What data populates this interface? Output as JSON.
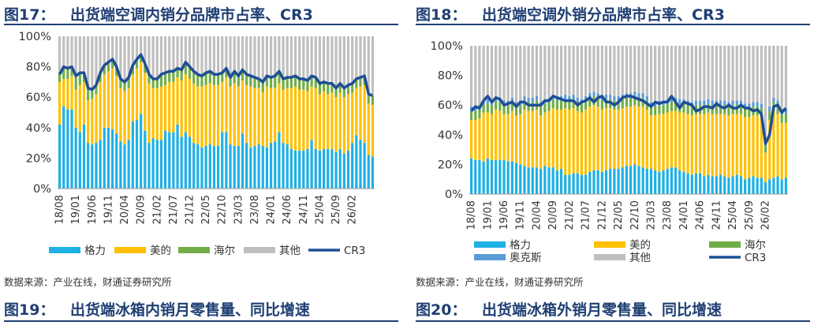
{
  "figure17": {
    "label": "图17：",
    "title": "出货端空调内销分品牌市占率、CR3",
    "source": "数据来源：产业在线，财通证券研究所"
  },
  "figure18": {
    "label": "图18：",
    "title": "出货端空调外销分品牌市占率、CR3",
    "source": "数据来源：产业在线，财通证券研究所"
  },
  "figure19": {
    "label": "图19：",
    "title": "出货端冰箱内销月零售量、同比增速"
  },
  "figure20": {
    "label": "图20：",
    "title": "出货端冰箱外销月零售量、同比增速"
  },
  "colors": {
    "gree": "#1fb0e6",
    "midea": "#ffc000",
    "haier": "#70ad47",
    "aux": "#5b9bd5",
    "other": "#bfbfbf",
    "cr3": "#1f4e96"
  },
  "chart_data": [
    {
      "type": "bar",
      "stacked": true,
      "title": "出货端空调内销分品牌市占率、CR3",
      "ylim": [
        0,
        100
      ],
      "y_ticks": [
        "0%",
        "20%",
        "40%",
        "60%",
        "80%",
        "100%"
      ],
      "x_ticks": [
        "18/08",
        "19/01",
        "19/06",
        "19/11",
        "20/04",
        "20/09",
        "21/02",
        "21/07",
        "21/12",
        "22/05",
        "22/10",
        "23/03",
        "23/08",
        "24/01",
        "24/06",
        "24/11",
        "25/04",
        "25/09",
        "26/02"
      ],
      "legend": {
        "position": "bottom",
        "labels": [
          "格力",
          "美的",
          "海尔",
          "其他",
          "CR3"
        ]
      },
      "series": [
        {
          "name": "格力",
          "values": [
            42,
            54,
            52,
            52,
            40,
            37,
            42,
            30,
            29,
            30,
            32,
            40,
            40,
            39,
            36,
            31,
            29,
            32,
            44,
            45,
            49,
            38,
            30,
            33,
            32,
            32,
            38,
            37,
            37,
            42,
            34,
            37,
            34,
            30,
            29,
            27,
            28,
            29,
            28,
            28,
            37,
            37,
            29,
            28,
            28,
            36,
            30,
            27,
            28,
            29,
            28,
            27,
            30,
            31,
            37,
            30,
            29,
            26,
            25,
            25,
            25,
            26,
            32,
            26,
            25,
            26,
            26,
            26,
            24,
            26,
            23,
            25,
            30,
            35,
            32,
            30,
            22,
            21
          ]
        },
        {
          "name": "美的",
          "values": [
            28,
            18,
            20,
            22,
            25,
            31,
            28,
            28,
            30,
            32,
            38,
            35,
            37,
            40,
            38,
            35,
            35,
            34,
            31,
            34,
            34,
            38,
            39,
            33,
            34,
            35,
            30,
            33,
            33,
            31,
            37,
            38,
            38,
            39,
            38,
            40,
            40,
            40,
            40,
            40,
            33,
            36,
            38,
            41,
            39,
            35,
            38,
            40,
            38,
            37,
            35,
            40,
            36,
            35,
            32,
            35,
            37,
            40,
            42,
            40,
            40,
            38,
            35,
            40,
            37,
            38,
            36,
            37,
            36,
            37,
            37,
            37,
            33,
            31,
            35,
            38,
            34,
            34
          ]
        },
        {
          "name": "海尔",
          "values": [
            6,
            8,
            7,
            6,
            9,
            8,
            6,
            8,
            6,
            6,
            6,
            6,
            6,
            6,
            6,
            6,
            6,
            7,
            6,
            6,
            5,
            6,
            6,
            6,
            6,
            8,
            8,
            7,
            7,
            6,
            7,
            8,
            8,
            8,
            8,
            7,
            8,
            8,
            7,
            7,
            6,
            6,
            6,
            8,
            7,
            7,
            7,
            7,
            7,
            6,
            7,
            7,
            7,
            8,
            8,
            7,
            7,
            7,
            7,
            7,
            7,
            7,
            7,
            7,
            7,
            6,
            6,
            6,
            6,
            6,
            6,
            6,
            6,
            6,
            6,
            6,
            6,
            6
          ]
        },
        {
          "name": "CR3",
          "type": "line",
          "values": [
            75,
            80,
            79,
            80,
            74,
            76,
            76,
            66,
            65,
            68,
            76,
            81,
            83,
            85,
            80,
            72,
            70,
            73,
            81,
            85,
            88,
            82,
            75,
            72,
            72,
            75,
            76,
            77,
            77,
            79,
            78,
            83,
            80,
            77,
            75,
            74,
            76,
            77,
            75,
            75,
            76,
            79,
            73,
            77,
            74,
            78,
            75,
            74,
            73,
            72,
            70,
            74,
            73,
            74,
            77,
            72,
            73,
            73,
            74,
            72,
            72,
            71,
            74,
            73,
            69,
            70,
            69,
            69,
            66,
            69,
            66,
            68,
            69,
            72,
            73,
            74,
            62,
            61
          ]
        }
      ]
    },
    {
      "type": "bar",
      "stacked": true,
      "title": "出货端空调外销分品牌市占率、CR3",
      "ylim": [
        0,
        100
      ],
      "y_ticks": [
        "0%",
        "20%",
        "40%",
        "60%",
        "80%",
        "100%"
      ],
      "x_ticks": [
        "18/08",
        "19/01",
        "19/06",
        "19/11",
        "20/04",
        "20/09",
        "21/02",
        "21/07",
        "21/12",
        "22/05",
        "22/10",
        "23/03",
        "23/08",
        "24/01",
        "24/06",
        "24/11",
        "25/04",
        "25/09",
        "26/02"
      ],
      "legend": {
        "position": "bottom",
        "labels": [
          "格力",
          "美的",
          "海尔",
          "奥克斯",
          "其他",
          "CR3"
        ]
      },
      "series": [
        {
          "name": "格力",
          "values": [
            24,
            23,
            23,
            22,
            24,
            23,
            23,
            23,
            23,
            22,
            22,
            21,
            20,
            19,
            18,
            18,
            18,
            17,
            19,
            18,
            18,
            16,
            17,
            13,
            13,
            14,
            14,
            13,
            13,
            15,
            16,
            16,
            15,
            16,
            17,
            17,
            17,
            18,
            19,
            19,
            20,
            19,
            18,
            17,
            17,
            16,
            15,
            16,
            17,
            18,
            18,
            16,
            15,
            14,
            13,
            14,
            14,
            12,
            13,
            12,
            12,
            13,
            12,
            11,
            12,
            13,
            12,
            10,
            11,
            12,
            11,
            11,
            8,
            10,
            11,
            12,
            10,
            11
          ]
        },
        {
          "name": "美的",
          "values": [
            26,
            27,
            28,
            33,
            31,
            31,
            34,
            33,
            31,
            32,
            34,
            32,
            34,
            38,
            38,
            38,
            39,
            36,
            36,
            38,
            40,
            41,
            40,
            45,
            44,
            44,
            42,
            42,
            44,
            44,
            44,
            43,
            42,
            42,
            41,
            40,
            40,
            40,
            40,
            40,
            40,
            40,
            41,
            40,
            36,
            37,
            39,
            38,
            38,
            38,
            38,
            39,
            40,
            40,
            40,
            40,
            40,
            42,
            42,
            42,
            42,
            41,
            42,
            42,
            42,
            41,
            42,
            42,
            41,
            41,
            42,
            41,
            20,
            40,
            45,
            42,
            38,
            37
          ]
        },
        {
          "name": "海尔",
          "values": [
            6,
            6,
            6,
            6,
            6,
            6,
            6,
            6,
            6,
            6,
            6,
            6,
            6,
            6,
            6,
            6,
            6,
            6,
            6,
            6,
            6,
            6,
            6,
            6,
            6,
            6,
            6,
            6,
            6,
            6,
            6,
            6,
            6,
            6,
            6,
            6,
            6,
            6,
            6,
            6,
            6,
            6,
            6,
            6,
            6,
            6,
            6,
            6,
            6,
            6,
            6,
            6,
            6,
            6,
            6,
            6,
            6,
            6,
            6,
            6,
            6,
            6,
            6,
            6,
            6,
            6,
            6,
            6,
            6,
            6,
            6,
            6,
            5,
            6,
            6,
            6,
            6,
            6
          ]
        },
        {
          "name": "奥克斯",
          "values": [
            3,
            3,
            3,
            3,
            3,
            3,
            3,
            3,
            3,
            3,
            3,
            3,
            3,
            3,
            3,
            3,
            3,
            3,
            3,
            3,
            3,
            3,
            3,
            3,
            3,
            3,
            3,
            3,
            3,
            3,
            3,
            3,
            3,
            3,
            3,
            3,
            3,
            3,
            3,
            3,
            3,
            3,
            3,
            3,
            3,
            3,
            3,
            3,
            3,
            3,
            3,
            3,
            3,
            3,
            3,
            3,
            3,
            3,
            3,
            3,
            3,
            3,
            3,
            3,
            3,
            3,
            3,
            3,
            3,
            3,
            3,
            3,
            3,
            3,
            3,
            3,
            3,
            3
          ]
        },
        {
          "name": "CR3",
          "type": "line",
          "values": [
            56,
            59,
            58,
            63,
            66,
            62,
            65,
            64,
            60,
            61,
            62,
            59,
            62,
            62,
            60,
            60,
            60,
            60,
            63,
            63,
            66,
            65,
            64,
            63,
            63,
            63,
            60,
            62,
            63,
            65,
            62,
            65,
            66,
            62,
            62,
            60,
            62,
            65,
            66,
            66,
            65,
            64,
            63,
            61,
            59,
            62,
            61,
            62,
            62,
            66,
            62,
            58,
            62,
            61,
            60,
            56,
            57,
            59,
            59,
            58,
            61,
            59,
            58,
            60,
            58,
            58,
            60,
            58,
            58,
            56,
            57,
            54,
            34,
            40,
            59,
            60,
            55,
            58
          ]
        }
      ]
    }
  ]
}
